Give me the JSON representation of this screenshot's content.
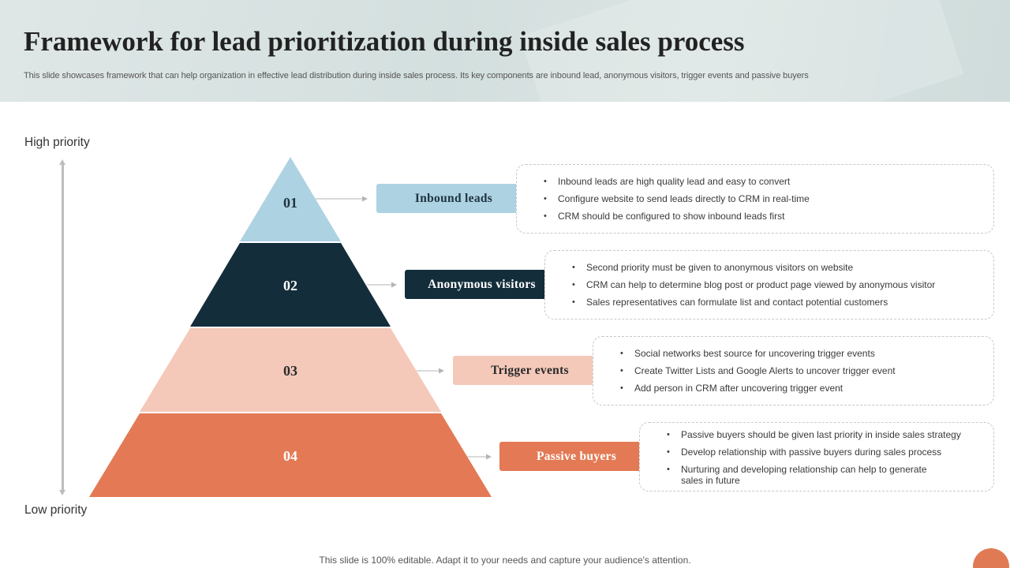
{
  "header": {
    "title": "Framework for lead prioritization during inside sales process",
    "subtitle": "This slide showcases framework that can help organization in effective lead distribution during inside sales process. Its key components are inbound lead, anonymous visitors, trigger events and passive buyers"
  },
  "axis": {
    "high_label": "High priority",
    "low_label": "Low priority"
  },
  "tiers": [
    {
      "number": "01",
      "label": "Inbound leads",
      "color": "#add2e2",
      "text_color": "#1f3340",
      "bullets": [
        "Inbound leads are high quality lead and easy to convert",
        "Configure website to send leads directly to CRM in real-time",
        "CRM should be configured to show inbound leads first"
      ]
    },
    {
      "number": "02",
      "label": "Anonymous visitors",
      "color": "#132d3b",
      "text_color": "#ffffff",
      "bullets": [
        "Second priority must be given to anonymous visitors on website",
        "CRM can help to determine blog post or product page viewed by anonymous visitor",
        "Sales representatives can formulate list and contact potential customers"
      ]
    },
    {
      "number": "03",
      "label": "Trigger events",
      "color": "#f4c9ba",
      "text_color": "#2a2a2a",
      "bullets": [
        "Social networks best source for uncovering trigger events",
        "Create Twitter Lists and Google Alerts to uncover trigger event",
        "Add person in CRM after uncovering trigger event"
      ]
    },
    {
      "number": "04",
      "label": "Passive buyers",
      "color": "#e37a55",
      "text_color": "#ffffff",
      "bullets": [
        "Passive buyers should be given last priority in inside sales strategy",
        "Develop relationship with passive buyers during sales process",
        "Nurturing and developing relationship can help to generate sales in future"
      ]
    }
  ],
  "footer": {
    "text": "This slide is 100% editable. Adapt it to your needs and capture your audience's attention."
  }
}
